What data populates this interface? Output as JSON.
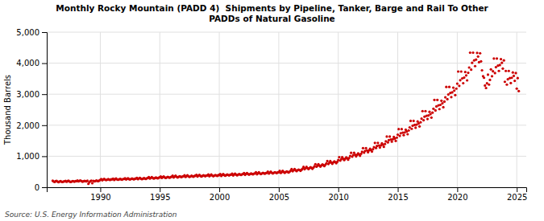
{
  "chart_data": {
    "type": "scatter",
    "title": "Monthly Rocky Mountain (PADD 4)  Shipments by Pipeline, Tanker, Barge and Rail To Other\nPADDs of Natural Gasoline",
    "ylabel": "Thousand Barrels",
    "annotation": "Source: U.S. Energy Information Administration",
    "color": "#cc0000",
    "grid": true,
    "xlim": [
      1985.5,
      2025.8
    ],
    "xticks": [
      1990,
      1995,
      2000,
      2005,
      2010,
      2015,
      2020,
      2025
    ],
    "ylim": [
      0,
      5000
    ],
    "yticks": [
      0,
      {
        "value": 1000,
        "label": "1,000"
      },
      {
        "value": 2000,
        "label": "2,000"
      },
      {
        "value": 3000,
        "label": "3,000"
      },
      {
        "value": 4000,
        "label": "4,000"
      },
      {
        "value": 5000,
        "label": "5,000"
      }
    ],
    "x": [
      1986.0,
      1986.08,
      1986.17,
      1986.25,
      1986.33,
      1986.42,
      1986.5,
      1986.58,
      1986.67,
      1986.75,
      1986.83,
      1986.92,
      1987.0,
      1987.08,
      1987.17,
      1987.25,
      1987.33,
      1987.42,
      1987.5,
      1987.58,
      1987.67,
      1987.75,
      1987.83,
      1987.92,
      1988.0,
      1988.08,
      1988.17,
      1988.25,
      1988.33,
      1988.42,
      1988.5,
      1988.58,
      1988.67,
      1988.75,
      1988.83,
      1988.92,
      1989.0,
      1989.08,
      1989.17,
      1989.25,
      1989.33,
      1989.42,
      1989.5,
      1989.58,
      1989.67,
      1989.75,
      1989.83,
      1989.92,
      1990.0,
      1990.08,
      1990.17,
      1990.25,
      1990.33,
      1990.42,
      1990.5,
      1990.58,
      1990.67,
      1990.75,
      1990.83,
      1990.92,
      1991.0,
      1991.08,
      1991.17,
      1991.25,
      1991.33,
      1991.42,
      1991.5,
      1991.58,
      1991.67,
      1991.75,
      1991.83,
      1991.92,
      1992.0,
      1992.08,
      1992.17,
      1992.25,
      1992.33,
      1992.42,
      1992.5,
      1992.58,
      1992.67,
      1992.75,
      1992.83,
      1992.92,
      1993.0,
      1993.08,
      1993.17,
      1993.25,
      1993.33,
      1993.42,
      1993.5,
      1993.58,
      1993.67,
      1993.75,
      1993.83,
      1993.92,
      1994.0,
      1994.08,
      1994.17,
      1994.25,
      1994.33,
      1994.42,
      1994.5,
      1994.58,
      1994.67,
      1994.75,
      1994.83,
      1994.92,
      1995.0,
      1995.08,
      1995.17,
      1995.25,
      1995.33,
      1995.42,
      1995.5,
      1995.58,
      1995.67,
      1995.75,
      1995.83,
      1995.92,
      1996.0,
      1996.08,
      1996.17,
      1996.25,
      1996.33,
      1996.42,
      1996.5,
      1996.58,
      1996.67,
      1996.75,
      1996.83,
      1996.92,
      1997.0,
      1997.08,
      1997.17,
      1997.25,
      1997.33,
      1997.42,
      1997.5,
      1997.58,
      1997.67,
      1997.75,
      1997.83,
      1997.92,
      1998.0,
      1998.08,
      1998.17,
      1998.25,
      1998.33,
      1998.42,
      1998.5,
      1998.58,
      1998.67,
      1998.75,
      1998.83,
      1998.92,
      1999.0,
      1999.08,
      1999.17,
      1999.25,
      1999.33,
      1999.42,
      1999.5,
      1999.58,
      1999.67,
      1999.75,
      1999.83,
      1999.92,
      2000.0,
      2000.08,
      2000.17,
      2000.25,
      2000.33,
      2000.42,
      2000.5,
      2000.58,
      2000.67,
      2000.75,
      2000.83,
      2000.92,
      2001.0,
      2001.08,
      2001.17,
      2001.25,
      2001.33,
      2001.42,
      2001.5,
      2001.58,
      2001.67,
      2001.75,
      2001.83,
      2001.92,
      2002.0,
      2002.08,
      2002.17,
      2002.25,
      2002.33,
      2002.42,
      2002.5,
      2002.58,
      2002.67,
      2002.75,
      2002.83,
      2002.92,
      2003.0,
      2003.08,
      2003.17,
      2003.25,
      2003.33,
      2003.42,
      2003.5,
      2003.58,
      2003.67,
      2003.75,
      2003.83,
      2003.92,
      2004.0,
      2004.08,
      2004.17,
      2004.25,
      2004.33,
      2004.42,
      2004.5,
      2004.58,
      2004.67,
      2004.75,
      2004.83,
      2004.92,
      2005.0,
      2005.08,
      2005.17,
      2005.25,
      2005.33,
      2005.42,
      2005.5,
      2005.58,
      2005.67,
      2005.75,
      2005.83,
      2005.92,
      2006.0,
      2006.08,
      2006.17,
      2006.25,
      2006.33,
      2006.42,
      2006.5,
      2006.58,
      2006.67,
      2006.75,
      2006.83,
      2006.92,
      2007.0,
      2007.08,
      2007.17,
      2007.25,
      2007.33,
      2007.42,
      2007.5,
      2007.58,
      2007.67,
      2007.75,
      2007.83,
      2007.92,
      2008.0,
      2008.08,
      2008.17,
      2008.25,
      2008.33,
      2008.42,
      2008.5,
      2008.58,
      2008.67,
      2008.75,
      2008.83,
      2008.92,
      2009.0,
      2009.08,
      2009.17,
      2009.25,
      2009.33,
      2009.42,
      2009.5,
      2009.58,
      2009.67,
      2009.75,
      2009.83,
      2009.92,
      2010.0,
      2010.08,
      2010.17,
      2010.25,
      2010.33,
      2010.42,
      2010.5,
      2010.58,
      2010.67,
      2010.75,
      2010.83,
      2010.92,
      2011.0,
      2011.08,
      2011.17,
      2011.25,
      2011.33,
      2011.42,
      2011.5,
      2011.58,
      2011.67,
      2011.75,
      2011.83,
      2011.92,
      2012.0,
      2012.08,
      2012.17,
      2012.25,
      2012.33,
      2012.42,
      2012.5,
      2012.58,
      2012.67,
      2012.75,
      2012.83,
      2012.92,
      2013.0,
      2013.08,
      2013.17,
      2013.25,
      2013.33,
      2013.42,
      2013.5,
      2013.58,
      2013.67,
      2013.75,
      2013.83,
      2013.92,
      2014.0,
      2014.08,
      2014.17,
      2014.25,
      2014.33,
      2014.42,
      2014.5,
      2014.58,
      2014.67,
      2014.75,
      2014.83,
      2014.92,
      2015.0,
      2015.08,
      2015.17,
      2015.25,
      2015.33,
      2015.42,
      2015.5,
      2015.58,
      2015.67,
      2015.75,
      2015.83,
      2015.92,
      2016.0,
      2016.08,
      2016.17,
      2016.25,
      2016.33,
      2016.42,
      2016.5,
      2016.58,
      2016.67,
      2016.75,
      2016.83,
      2016.92,
      2017.0,
      2017.08,
      2017.17,
      2017.25,
      2017.33,
      2017.42,
      2017.5,
      2017.58,
      2017.67,
      2017.75,
      2017.83,
      2017.92,
      2018.0,
      2018.08,
      2018.17,
      2018.25,
      2018.33,
      2018.42,
      2018.5,
      2018.58,
      2018.67,
      2018.75,
      2018.83,
      2018.92,
      2019.0,
      2019.08,
      2019.17,
      2019.25,
      2019.33,
      2019.42,
      2019.5,
      2019.58,
      2019.67,
      2019.75,
      2019.83,
      2019.92,
      2020.0,
      2020.08,
      2020.17,
      2020.25,
      2020.33,
      2020.42,
      2020.5,
      2020.58,
      2020.67,
      2020.75,
      2020.83,
      2020.92,
      2021.0,
      2021.08,
      2021.17,
      2021.25,
      2021.33,
      2021.42,
      2021.5,
      2021.58,
      2021.67,
      2021.75,
      2021.83,
      2021.92,
      2022.0,
      2022.08,
      2022.17,
      2022.25,
      2022.33,
      2022.42,
      2022.5,
      2022.58,
      2022.67,
      2022.75,
      2022.83,
      2022.92,
      2023.0,
      2023.08,
      2023.17,
      2023.25,
      2023.33,
      2023.42,
      2023.5,
      2023.58,
      2023.67,
      2023.75,
      2023.83,
      2023.92,
      2024.0,
      2024.08,
      2024.17,
      2024.25,
      2024.33,
      2024.42,
      2024.5,
      2024.58,
      2024.67,
      2024.75,
      2024.83,
      2024.92,
      2025.0,
      2025.08,
      2025.17
    ],
    "values": [
      210,
      185,
      170,
      195,
      205,
      180,
      165,
      185,
      195,
      175,
      170,
      185,
      190,
      205,
      175,
      195,
      210,
      185,
      170,
      180,
      195,
      190,
      180,
      195,
      195,
      215,
      190,
      205,
      220,
      200,
      180,
      190,
      205,
      195,
      190,
      210,
      110,
      160,
      195,
      210,
      130,
      205,
      190,
      200,
      215,
      205,
      195,
      215,
      240,
      265,
      225,
      250,
      270,
      240,
      230,
      245,
      260,
      245,
      235,
      255,
      255,
      275,
      235,
      260,
      280,
      250,
      240,
      255,
      270,
      255,
      245,
      265,
      265,
      290,
      250,
      270,
      290,
      260,
      250,
      265,
      280,
      265,
      255,
      275,
      280,
      305,
      260,
      285,
      305,
      275,
      260,
      275,
      295,
      280,
      265,
      290,
      300,
      325,
      280,
      305,
      325,
      295,
      280,
      295,
      315,
      300,
      285,
      310,
      320,
      350,
      300,
      325,
      350,
      315,
      300,
      315,
      335,
      320,
      305,
      330,
      340,
      370,
      315,
      345,
      370,
      335,
      315,
      335,
      355,
      340,
      325,
      350,
      355,
      385,
      330,
      360,
      385,
      350,
      330,
      350,
      370,
      355,
      340,
      365,
      370,
      400,
      345,
      375,
      400,
      365,
      345,
      365,
      385,
      370,
      355,
      380,
      380,
      410,
      355,
      385,
      410,
      375,
      355,
      375,
      395,
      380,
      365,
      390,
      390,
      425,
      365,
      395,
      425,
      390,
      370,
      390,
      410,
      395,
      380,
      405,
      405,
      440,
      380,
      410,
      440,
      405,
      385,
      405,
      425,
      410,
      395,
      420,
      425,
      460,
      400,
      430,
      460,
      425,
      405,
      425,
      445,
      430,
      415,
      440,
      445,
      485,
      420,
      450,
      485,
      445,
      425,
      445,
      465,
      450,
      435,
      460,
      465,
      505,
      440,
      470,
      505,
      465,
      445,
      465,
      485,
      470,
      455,
      480,
      485,
      530,
      460,
      490,
      530,
      490,
      465,
      490,
      510,
      495,
      475,
      505,
      535,
      585,
      515,
      550,
      585,
      545,
      520,
      550,
      570,
      555,
      530,
      565,
      600,
      655,
      580,
      615,
      655,
      615,
      585,
      620,
      645,
      625,
      595,
      635,
      680,
      745,
      660,
      695,
      745,
      700,
      665,
      705,
      735,
      715,
      680,
      725,
      770,
      845,
      750,
      790,
      845,
      795,
      755,
      800,
      835,
      810,
      775,
      820,
      880,
      970,
      860,
      905,
      970,
      920,
      875,
      920,
      960,
      935,
      890,
      945,
      1010,
      1110,
      985,
      1035,
      1110,
      1045,
      995,
      1045,
      1095,
      1060,
      1015,
      1080,
      1145,
      1260,
      1115,
      1170,
      1260,
      1185,
      1130,
      1185,
      1240,
      1200,
      1150,
      1225,
      1295,
      1430,
      1265,
      1330,
      1430,
      1345,
      1280,
      1350,
      1415,
      1370,
      1305,
      1395,
      1480,
      1635,
      1445,
      1520,
      1635,
      1540,
      1470,
      1545,
      1620,
      1570,
      1495,
      1600,
      1695,
      1875,
      1655,
      1740,
      1875,
      1760,
      1680,
      1765,
      1855,
      1795,
      1710,
      1830,
      1930,
      2140,
      1885,
      1985,
      2140,
      2010,
      1920,
      2020,
      2120,
      2055,
      1960,
      2095,
      2210,
      2455,
      2160,
      2275,
      2455,
      2305,
      2200,
      2315,
      2430,
      2355,
      2245,
      2405,
      2530,
      2815,
      2475,
      2605,
      2815,
      2640,
      2520,
      2655,
      2790,
      2705,
      2580,
      2760,
      2900,
      3235,
      2840,
      2990,
      3235,
      3040,
      2905,
      3060,
      3210,
      3115,
      2970,
      3180,
      3340,
      3730,
      3270,
      3450,
      3730,
      3510,
      3355,
      3535,
      3715,
      3605,
      3445,
      3690,
      3860,
      4340,
      3790,
      4010,
      4340,
      4090,
      3905,
      4115,
      4330,
      4215,
      4030,
      4320,
      4060,
      3770,
      3580,
      3530,
      3280,
      3200,
      3350,
      3630,
      3310,
      3460,
      3800,
      3580,
      3740,
      4150,
      3680,
      3870,
      4150,
      3920,
      3750,
      3940,
      4130,
      4010,
      3825,
      4090,
      3400,
      3750,
      3310,
      3480,
      3750,
      3520,
      3360,
      3530,
      3700,
      3590,
      3430,
      3680,
      3180,
      3520,
      3100
    ]
  }
}
